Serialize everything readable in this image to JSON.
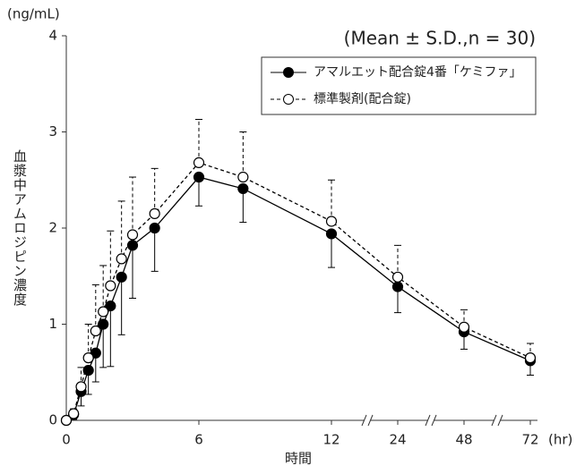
{
  "chart_data": {
    "type": "line",
    "subtitle": "(Mean ± S.D.,n = 30)",
    "y_unit": "(ng/mL)",
    "x_unit": "(hr)",
    "y_label": "血漿中アムロジピン濃度",
    "x_label": "時間",
    "x": [
      0,
      0.33,
      0.67,
      1,
      1.33,
      1.67,
      2,
      2.5,
      3,
      4,
      6,
      8,
      12,
      24,
      48,
      72
    ],
    "xticks": [
      0,
      6,
      12,
      24,
      48,
      72
    ],
    "ylim": [
      0,
      4
    ],
    "yticks": [
      0,
      1,
      2,
      3,
      4
    ],
    "legend": "top-right",
    "series": [
      {
        "name": "アマルエット配合錠4番「ケミファ」",
        "color": "#000000",
        "dash": "solid",
        "marker": "filled",
        "error_direction": "down",
        "values": [
          0,
          0.06,
          0.3,
          0.52,
          0.7,
          1.0,
          1.19,
          1.49,
          1.82,
          2.0,
          2.53,
          2.41,
          1.94,
          1.39,
          0.92,
          0.62
        ],
        "errors": [
          0,
          0.05,
          0.15,
          0.25,
          0.3,
          0.45,
          0.63,
          0.6,
          0.55,
          0.45,
          0.3,
          0.35,
          0.35,
          0.27,
          0.18,
          0.15
        ]
      },
      {
        "name": "標準製剤(配合錠)",
        "color": "#000000",
        "dash": "dashed",
        "marker": "open",
        "error_direction": "up",
        "values": [
          0,
          0.07,
          0.35,
          0.65,
          0.93,
          1.13,
          1.4,
          1.68,
          1.93,
          2.15,
          2.68,
          2.53,
          2.07,
          1.49,
          0.97,
          0.65
        ],
        "errors": [
          0,
          0.05,
          0.2,
          0.35,
          0.48,
          0.48,
          0.57,
          0.6,
          0.6,
          0.47,
          0.45,
          0.47,
          0.43,
          0.33,
          0.18,
          0.15
        ]
      }
    ]
  }
}
